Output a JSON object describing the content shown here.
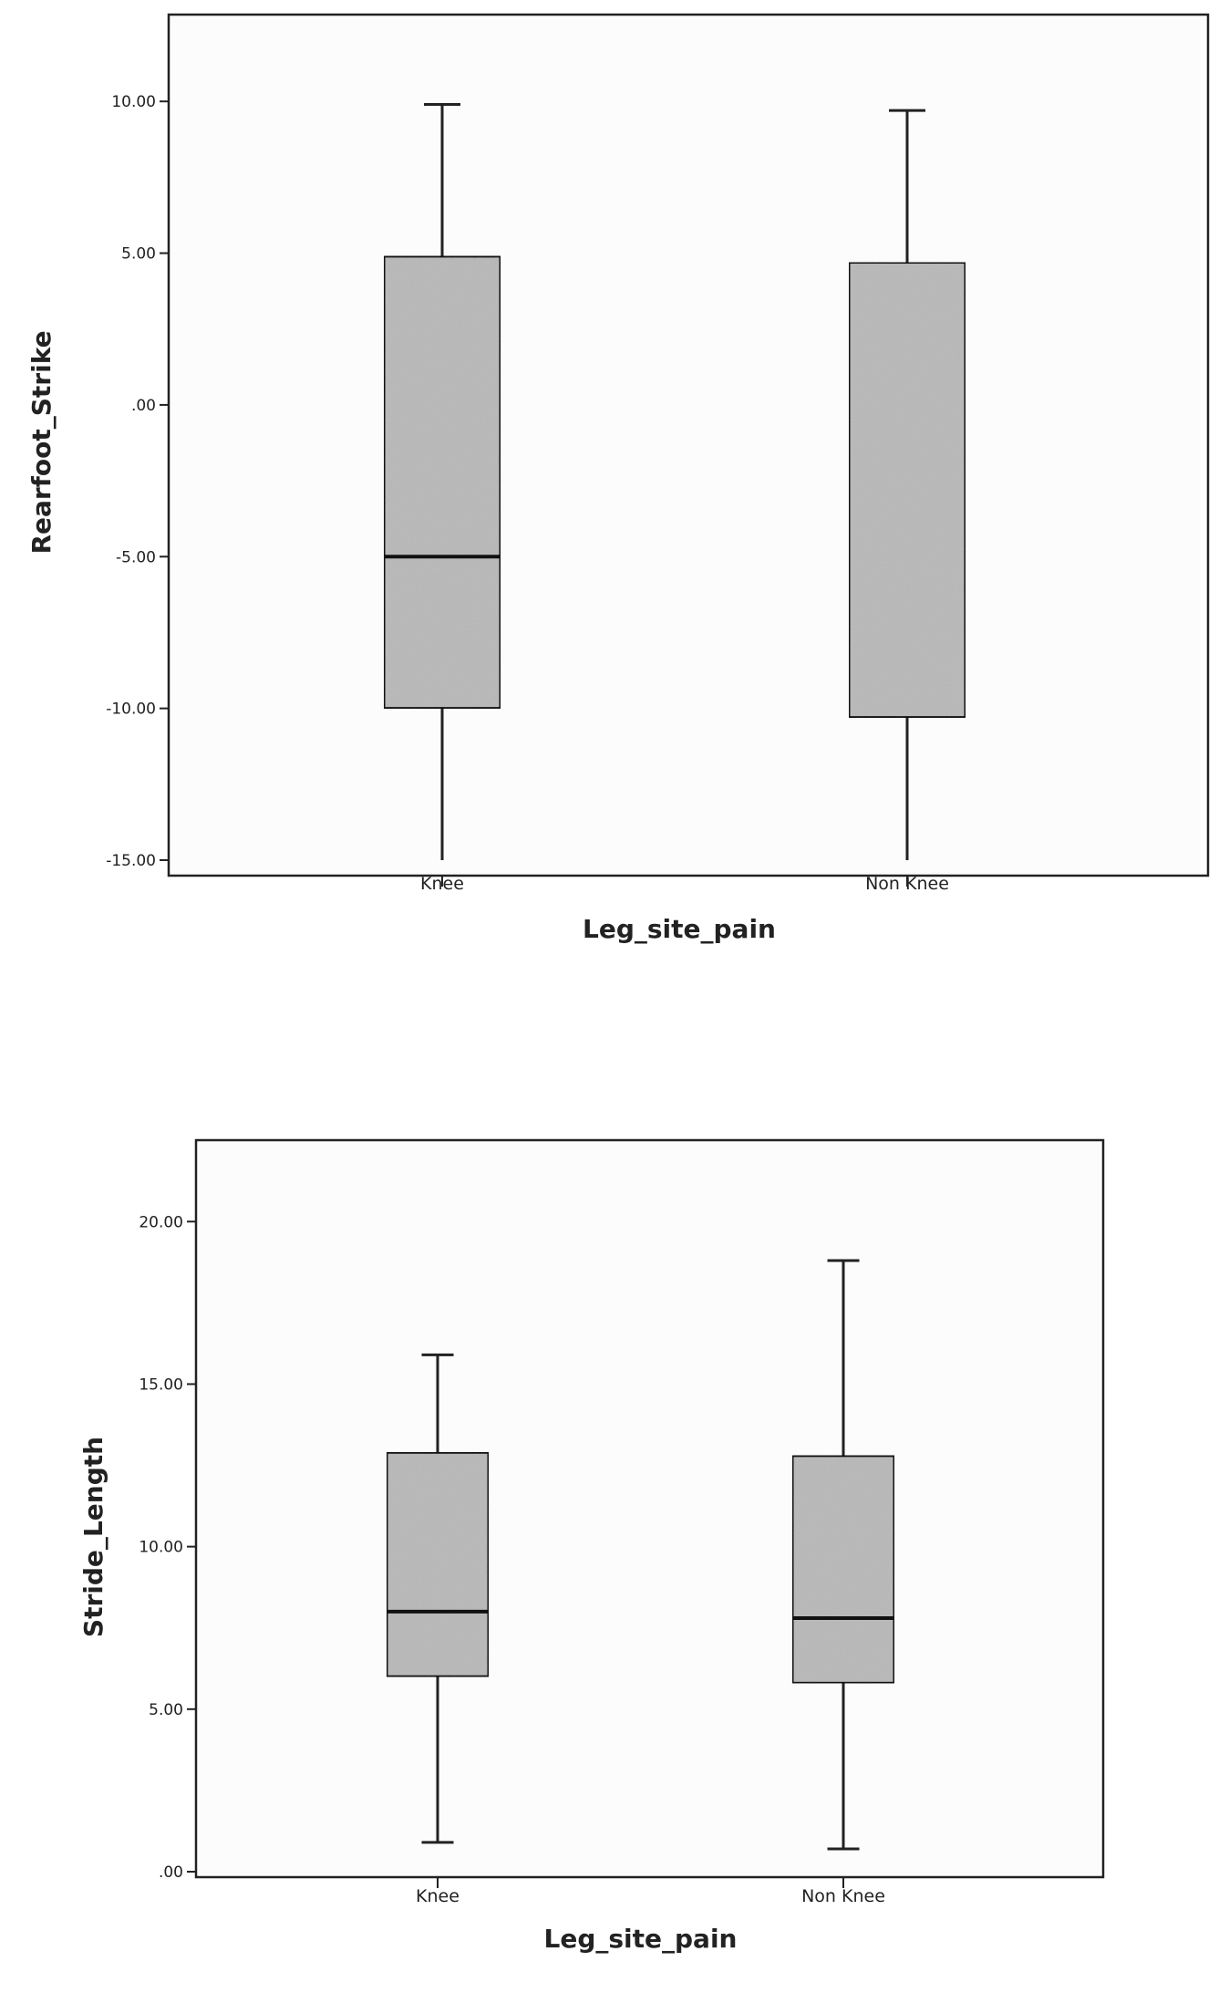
{
  "chart_data": [
    {
      "type": "boxplot",
      "xlabel": "Leg_site_pain",
      "ylabel": "Rearfoot_Strike",
      "ylim": [
        -15,
        12.5
      ],
      "yticks": [
        10,
        5,
        0,
        -5,
        -10,
        -15
      ],
      "ytick_labels": [
        "10.00",
        "5.00",
        ".00",
        "-5.00",
        "-10.00",
        "-15.00"
      ],
      "grid": false,
      "categories": [
        "Knee",
        "Non Knee"
      ],
      "boxes": [
        {
          "category": "Knee",
          "min": -15.0,
          "q1": -10.0,
          "median": -5.0,
          "q3": 4.9,
          "max": 9.9
        },
        {
          "category": "Non Knee",
          "min": -15.0,
          "q1": -10.3,
          "median": null,
          "q3": 4.7,
          "max": 9.7
        }
      ]
    },
    {
      "type": "boxplot",
      "xlabel": "Leg_site_pain",
      "ylabel": "Stride_Length",
      "ylim": [
        0,
        22
      ],
      "yticks": [
        20,
        15,
        10,
        5,
        0
      ],
      "ytick_labels": [
        "20.00",
        "15.00",
        "10.00",
        "5.00",
        ".00"
      ],
      "grid": false,
      "categories": [
        "Knee",
        "Non Knee"
      ],
      "boxes": [
        {
          "category": "Knee",
          "min": 0.9,
          "q1": 6.0,
          "median": 8.0,
          "q3": 12.9,
          "max": 15.9
        },
        {
          "category": "Non Knee",
          "min": 0.7,
          "q1": 5.8,
          "median": 7.8,
          "q3": 12.8,
          "max": 18.8
        }
      ]
    }
  ]
}
